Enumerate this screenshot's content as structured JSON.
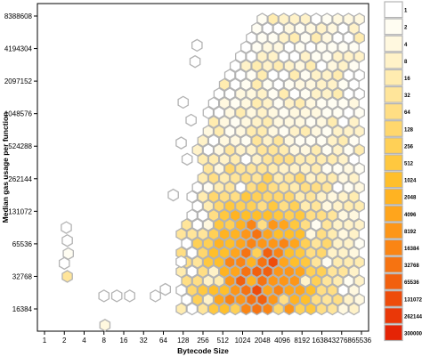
{
  "chart_data": {
    "type": "heatmap",
    "subtype": "hexbin",
    "xlabel": "Bytecode Size",
    "ylabel": "Median gas usage per function",
    "x_scale": "log2",
    "y_scale": "log2",
    "xlim": [
      1,
      65536
    ],
    "ylim": [
      8192,
      8388608
    ],
    "x_ticks": [
      "1",
      "2",
      "4",
      "8",
      "16",
      "32",
      "64",
      "128",
      "256",
      "512",
      "1024",
      "2048",
      "4096",
      "8192",
      "16384",
      "32768",
      "65536"
    ],
    "y_ticks": [
      "16384",
      "32768",
      "65536",
      "131072",
      "262144",
      "524288",
      "1048576",
      "2097152",
      "4194304",
      "8388608"
    ],
    "legend": {
      "position": "right",
      "bins": [
        "1",
        "2",
        "4",
        "8",
        "16",
        "32",
        "64",
        "128",
        "256",
        "512",
        "1024",
        "2048",
        "4096",
        "8192",
        "16384",
        "32768",
        "65536",
        "131072",
        "262144",
        "300000"
      ],
      "colors": [
        "#ffffff",
        "#fffdf2",
        "#fff8df",
        "#fff2c8",
        "#ffecb0",
        "#ffe59a",
        "#ffde84",
        "#ffd76d",
        "#ffd056",
        "#ffc83f",
        "#ffbf2b",
        "#ffb322",
        "#ffa51c",
        "#fd9618",
        "#fa8514",
        "#f67311",
        "#f2600e",
        "#ee4c0b",
        "#ea3808",
        "#e52405"
      ]
    },
    "notes": "Counts concentrated around bytecode size 1024-4096 and gas 16384-65536; sparse outliers at small bytecode sizes (2, 8-32) and gas 8192-65536."
  }
}
